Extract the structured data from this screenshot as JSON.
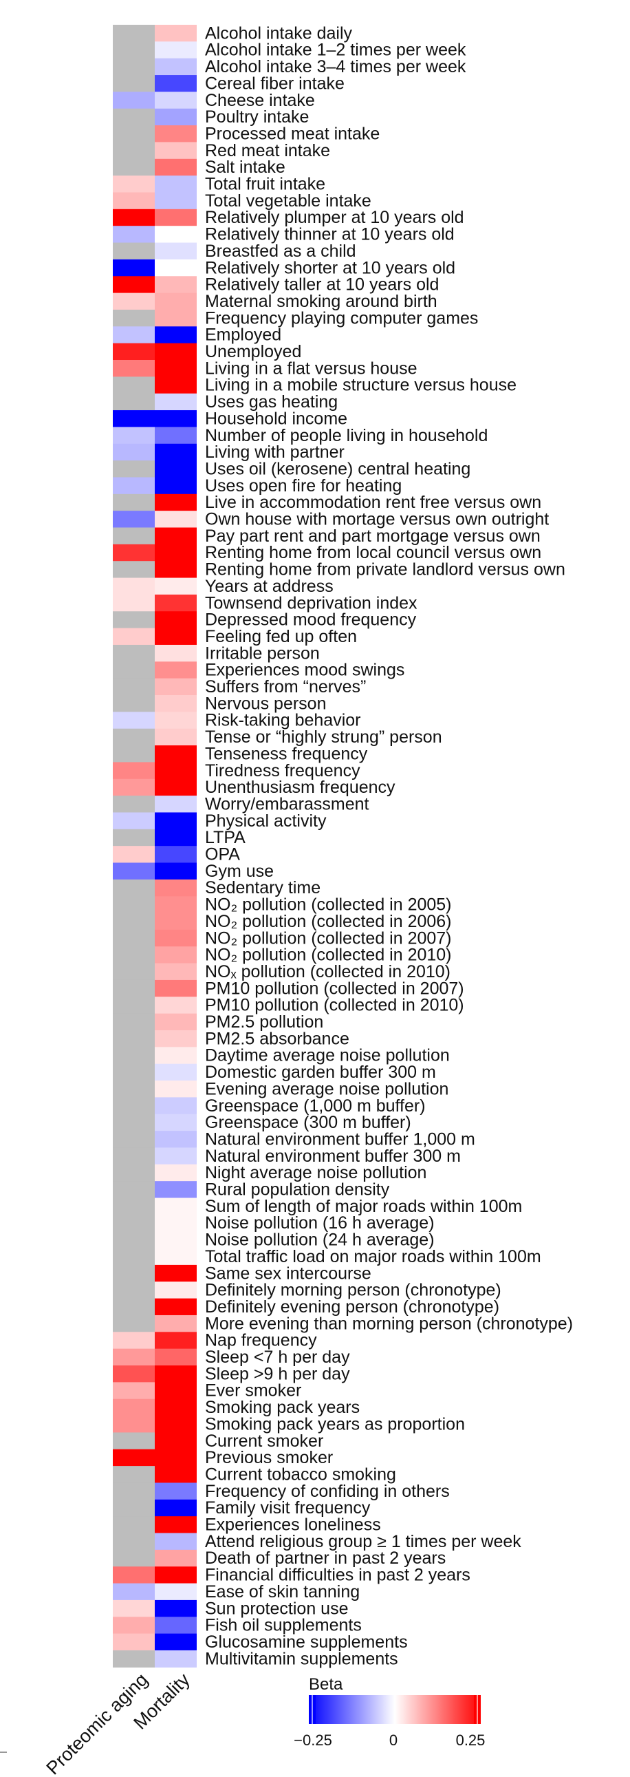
{
  "chart_data": {
    "type": "heatmap",
    "columns": [
      "Proteomic aging",
      "Mortality"
    ],
    "colorbar": {
      "title": "Beta",
      "min": -0.25,
      "max": 0.25,
      "ticks": [
        -0.25,
        0,
        0.25
      ],
      "tick_labels": [
        "−0.25",
        "0",
        "0.25"
      ],
      "low_color": "#0000ff",
      "mid_color": "#ffffff",
      "high_color": "#ff0000",
      "na_color": "#bdbdbd"
    },
    "rows": [
      {
        "label": "Alcohol intake daily",
        "values": [
          null,
          0.06
        ]
      },
      {
        "label": "Alcohol intake 1–2 times per week",
        "values": [
          null,
          -0.02
        ]
      },
      {
        "label": "Alcohol intake 3–4 times per week",
        "values": [
          null,
          -0.06
        ]
      },
      {
        "label": "Cereal fiber intake",
        "values": [
          null,
          -0.18
        ]
      },
      {
        "label": "Cheese intake",
        "values": [
          -0.08,
          -0.04
        ]
      },
      {
        "label": "Poultry intake",
        "values": [
          null,
          -0.09
        ]
      },
      {
        "label": "Processed meat intake",
        "values": [
          null,
          0.12
        ]
      },
      {
        "label": "Red meat intake",
        "values": [
          null,
          0.06
        ]
      },
      {
        "label": "Salt intake",
        "values": [
          null,
          0.14
        ]
      },
      {
        "label": "Total fruit intake",
        "values": [
          0.05,
          -0.06
        ]
      },
      {
        "label": "Total vegetable intake",
        "values": [
          0.07,
          -0.06
        ]
      },
      {
        "label": "Relatively plumper at 10 years old",
        "values": [
          0.25,
          0.14
        ]
      },
      {
        "label": "Relatively thinner at 10 years old",
        "values": [
          -0.07,
          0.0
        ]
      },
      {
        "label": "Breastfed as a child",
        "values": [
          null,
          -0.03
        ]
      },
      {
        "label": "Relatively shorter at 10 years old",
        "values": [
          -0.25,
          0.0
        ]
      },
      {
        "label": "Relatively taller at 10 years old",
        "values": [
          0.25,
          0.07
        ]
      },
      {
        "label": "Maternal smoking around birth",
        "values": [
          0.05,
          0.08
        ]
      },
      {
        "label": "Frequency playing computer games",
        "values": [
          null,
          0.08
        ]
      },
      {
        "label": "Employed",
        "values": [
          -0.06,
          -0.25
        ]
      },
      {
        "label": "Unemployed",
        "values": [
          0.22,
          0.25
        ]
      },
      {
        "label": "Living in a flat versus house",
        "values": [
          0.13,
          0.25
        ]
      },
      {
        "label": "Living in a mobile structure versus house",
        "values": [
          null,
          0.25
        ]
      },
      {
        "label": "Uses gas heating",
        "values": [
          null,
          -0.04
        ]
      },
      {
        "label": "Household income",
        "values": [
          -0.25,
          -0.25
        ]
      },
      {
        "label": "Number of people living in household",
        "values": [
          -0.06,
          -0.14
        ]
      },
      {
        "label": "Living with partner",
        "values": [
          -0.07,
          -0.25
        ]
      },
      {
        "label": "Uses oil (kerosene) central heating",
        "values": [
          null,
          -0.25
        ]
      },
      {
        "label": "Uses open fire for heating",
        "values": [
          -0.07,
          -0.25
        ]
      },
      {
        "label": "Live in accommodation rent free versus own",
        "values": [
          null,
          0.25
        ]
      },
      {
        "label": "Own house with mortage versus own outright",
        "values": [
          -0.13,
          0.03
        ]
      },
      {
        "label": "Pay part rent and part mortgage versus own",
        "values": [
          null,
          0.25
        ]
      },
      {
        "label": "Renting home from local council versus own",
        "values": [
          0.2,
          0.25
        ]
      },
      {
        "label": "Renting home from private landlord versus own",
        "values": [
          null,
          0.25
        ]
      },
      {
        "label": "Years at address",
        "values": [
          0.03,
          0.02
        ]
      },
      {
        "label": "Townsend deprivation index",
        "values": [
          0.03,
          0.2
        ]
      },
      {
        "label": "Depressed mood frequency",
        "values": [
          null,
          0.25
        ]
      },
      {
        "label": "Feeling fed up often",
        "values": [
          0.05,
          0.25
        ]
      },
      {
        "label": "Irritable person",
        "values": [
          null,
          0.03
        ]
      },
      {
        "label": "Experiences mood swings",
        "values": [
          null,
          0.11
        ]
      },
      {
        "label": "Suffers from “nerves”",
        "values": [
          null,
          0.07
        ]
      },
      {
        "label": "Nervous person",
        "values": [
          null,
          0.05
        ]
      },
      {
        "label": "Risk-taking behavior",
        "values": [
          -0.04,
          0.04
        ]
      },
      {
        "label": "Tense or “highly strung” person",
        "values": [
          null,
          0.05
        ]
      },
      {
        "label": "Tenseness frequency",
        "values": [
          null,
          0.25
        ]
      },
      {
        "label": "Tiredness frequency",
        "values": [
          0.12,
          0.25
        ]
      },
      {
        "label": "Unenthusiasm frequency",
        "values": [
          0.1,
          0.25
        ]
      },
      {
        "label": "Worry/embarassment",
        "values": [
          null,
          -0.04
        ]
      },
      {
        "label": "Physical activity",
        "values": [
          -0.05,
          -0.25
        ]
      },
      {
        "label": "LTPA",
        "values": [
          null,
          -0.25
        ]
      },
      {
        "label": "OPA",
        "values": [
          0.05,
          -0.18
        ]
      },
      {
        "label": "Gym use",
        "values": [
          -0.14,
          -0.25
        ]
      },
      {
        "label": "Sedentary time",
        "values": [
          null,
          0.12
        ]
      },
      {
        "label": "NO₂ pollution (collected in 2005)",
        "values": [
          null,
          0.11
        ]
      },
      {
        "label": "NO₂ pollution (collected in 2006)",
        "values": [
          null,
          0.11
        ]
      },
      {
        "label": "NO₂ pollution (collected in 2007)",
        "values": [
          null,
          0.12
        ]
      },
      {
        "label": "NO₂ pollution (collected in 2010)",
        "values": [
          null,
          0.09
        ]
      },
      {
        "label": "NOₓ pollution (collected in 2010)",
        "values": [
          null,
          0.07
        ]
      },
      {
        "label": "PM10 pollution (collected in 2007)",
        "values": [
          null,
          0.13
        ]
      },
      {
        "label": "PM10 pollution (collected in 2010)",
        "values": [
          null,
          0.04
        ]
      },
      {
        "label": "PM2.5 pollution",
        "values": [
          null,
          0.07
        ]
      },
      {
        "label": "PM2.5 absorbance",
        "values": [
          null,
          0.05
        ]
      },
      {
        "label": "Daytime average noise pollution",
        "values": [
          null,
          0.02
        ]
      },
      {
        "label": "Domestic garden buffer 300 m",
        "values": [
          null,
          -0.03
        ]
      },
      {
        "label": "Evening average noise pollution",
        "values": [
          null,
          0.02
        ]
      },
      {
        "label": "Greenspace (1,000 m buffer)",
        "values": [
          null,
          -0.05
        ]
      },
      {
        "label": "Greenspace (300 m buffer)",
        "values": [
          null,
          -0.04
        ]
      },
      {
        "label": "Natural environment buffer 1,000 m",
        "values": [
          null,
          -0.06
        ]
      },
      {
        "label": "Natural environment buffer 300 m",
        "values": [
          null,
          -0.04
        ]
      },
      {
        "label": "Night average noise pollution",
        "values": [
          null,
          0.02
        ]
      },
      {
        "label": "Rural population density",
        "values": [
          null,
          -0.11
        ]
      },
      {
        "label": "Sum of length of major roads within 100m",
        "values": [
          null,
          0.01
        ]
      },
      {
        "label": "Noise pollution (16 h average)",
        "values": [
          null,
          0.01
        ]
      },
      {
        "label": "Noise pollution (24 h average)",
        "values": [
          null,
          0.01
        ]
      },
      {
        "label": "Total traffic load on major roads within 100m",
        "values": [
          null,
          0.01
        ]
      },
      {
        "label": "Same sex intercourse",
        "values": [
          null,
          0.25
        ]
      },
      {
        "label": "Definitely morning person (chronotype)",
        "values": [
          null,
          0.02
        ]
      },
      {
        "label": "Definitely evening person (chronotype)",
        "values": [
          null,
          0.25
        ]
      },
      {
        "label": "More evening than morning person (chronotype)",
        "values": [
          null,
          0.08
        ]
      },
      {
        "label": "Nap frequency",
        "values": [
          0.05,
          0.22
        ]
      },
      {
        "label": "Sleep <7 h per day",
        "values": [
          0.1,
          0.15
        ]
      },
      {
        "label": "Sleep >9 h per day",
        "values": [
          0.17,
          0.25
        ]
      },
      {
        "label": "Ever smoker",
        "values": [
          0.08,
          0.25
        ]
      },
      {
        "label": "Smoking pack years",
        "values": [
          0.11,
          0.25
        ]
      },
      {
        "label": "Smoking pack years as proportion",
        "values": [
          0.11,
          0.25
        ]
      },
      {
        "label": "Current smoker",
        "values": [
          null,
          0.25
        ]
      },
      {
        "label": "Previous smoker",
        "values": [
          0.25,
          0.25
        ]
      },
      {
        "label": "Current tobacco smoking",
        "values": [
          null,
          0.25
        ]
      },
      {
        "label": "Frequency of confiding in others",
        "values": [
          null,
          -0.13
        ]
      },
      {
        "label": "Family visit frequency",
        "values": [
          null,
          -0.25
        ]
      },
      {
        "label": "Experiences loneliness",
        "values": [
          null,
          0.25
        ]
      },
      {
        "label": "Attend religious group ≥ 1 times per week",
        "values": [
          null,
          -0.07
        ]
      },
      {
        "label": "Death of partner in past 2 years",
        "values": [
          null,
          0.09
        ]
      },
      {
        "label": "Financial difficulties in past 2 years",
        "values": [
          0.14,
          0.25
        ]
      },
      {
        "label": "Ease of skin tanning",
        "values": [
          -0.07,
          -0.02
        ]
      },
      {
        "label": "Sun protection use",
        "values": [
          0.04,
          -0.25
        ]
      },
      {
        "label": "Fish oil supplements",
        "values": [
          0.08,
          -0.15
        ]
      },
      {
        "label": "Glucosamine supplements",
        "values": [
          0.06,
          -0.25
        ]
      },
      {
        "label": "Multivitamin supplements",
        "values": [
          null,
          -0.05
        ]
      }
    ]
  }
}
